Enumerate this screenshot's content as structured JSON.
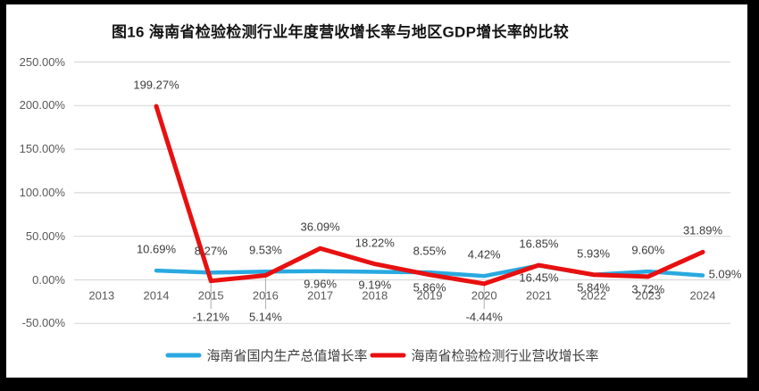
{
  "title": "图16  海南省检验检测行业年度营收增长率与地区GDP增长率的比较",
  "chart_data": {
    "type": "line",
    "title": "图16  海南省检验检测行业年度营收增长率与地区GDP增长率的比较",
    "categories": [
      "2013",
      "2014",
      "2015",
      "2016",
      "2017",
      "2018",
      "2019",
      "2020",
      "2021",
      "2022",
      "2023",
      "2024"
    ],
    "xlabel": "",
    "ylabel": "",
    "ylim": [
      -50,
      250
    ],
    "grid": true,
    "grid_color": "#D9D9D9",
    "leader_color": "#ABABAB",
    "legend_position": "bottom",
    "y_ticks": [
      {
        "label": "250.00%",
        "value": 250
      },
      {
        "label": "200.00%",
        "value": 200
      },
      {
        "label": "150.00%",
        "value": 150
      },
      {
        "label": "100.00%",
        "value": 100
      },
      {
        "label": "50.00%",
        "value": 50
      },
      {
        "label": "0.00%",
        "value": 0
      },
      {
        "label": "-50.00%",
        "value": -50
      }
    ],
    "series": [
      {
        "name": "海南省国内生产总值增长率",
        "color": "#29A9E0",
        "values": [
          null,
          10.69,
          8.27,
          9.53,
          9.96,
          9.19,
          8.55,
          4.42,
          16.45,
          5.84,
          9.6,
          5.09
        ],
        "labels": [
          null,
          "10.69%",
          "8.27%",
          "9.53%",
          "9.96%",
          "9.19%",
          "8.55%",
          "4.42%",
          "16.45%",
          "5.84%",
          "9.60%",
          "5.09%"
        ],
        "label_placement": [
          null,
          "above",
          "above",
          "above",
          "below",
          "below",
          "above",
          "above",
          "below",
          "below",
          "above",
          "right"
        ]
      },
      {
        "name": "海南省检验检测行业营收增长率",
        "color": "#E81010",
        "values": [
          null,
          199.27,
          -1.21,
          5.14,
          36.09,
          18.22,
          5.86,
          -4.44,
          16.85,
          5.93,
          3.72,
          31.89
        ],
        "labels": [
          null,
          "199.27%",
          "-1.21%",
          "5.14%",
          "36.09%",
          "18.22%",
          "5.86%",
          "-4.44%",
          "16.85%",
          "5.93%",
          "3.72%",
          "31.89%"
        ],
        "label_placement": [
          null,
          "above",
          "axis-below",
          "axis-below",
          "above",
          "above",
          "below",
          "axis-below",
          "above",
          "above",
          "below",
          "above"
        ]
      }
    ]
  },
  "legend": {
    "items": [
      {
        "label": "海南省国内生产总值增长率",
        "color": "#29A9E0"
      },
      {
        "label": "海南省检验检测行业营收增长率",
        "color": "#E81010"
      }
    ]
  }
}
